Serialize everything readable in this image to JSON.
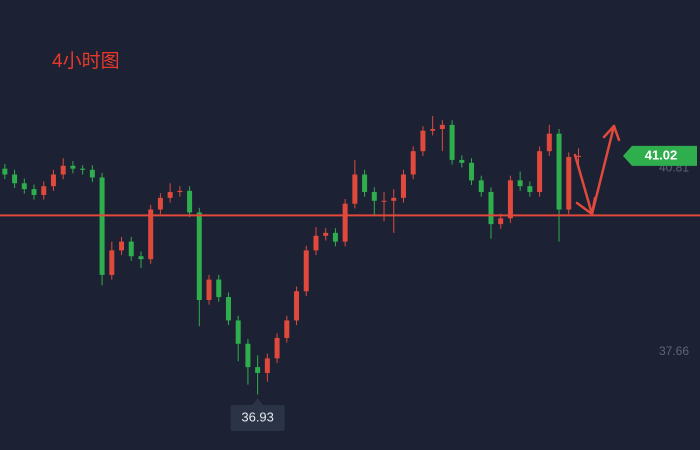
{
  "chart_data": {
    "type": "candlestick",
    "title": "4小时图",
    "xlim": [
      -0.5,
      71.5
    ],
    "ylim": [
      35.98,
      43.69
    ],
    "yticks": [
      37.66,
      40.81
    ],
    "up_color": "#e0493b",
    "down_color": "#2fae4e",
    "hline": 40.0,
    "hline_color": "#e0493b",
    "last_price": 41.02,
    "low_label": 36.93,
    "low_index": 26,
    "open": [
      40.8,
      40.7,
      40.55,
      40.45,
      40.35,
      40.5,
      40.7,
      40.85,
      40.8,
      40.78,
      40.65,
      38.98,
      39.4,
      39.55,
      39.3,
      39.25,
      40.1,
      40.3,
      40.4,
      40.42,
      40.05,
      38.55,
      38.9,
      38.6,
      38.2,
      37.8,
      37.4,
      37.3,
      37.55,
      37.9,
      38.2,
      38.7,
      39.4,
      39.65,
      39.7,
      39.55,
      40.2,
      40.7,
      40.4,
      40.25,
      40.25,
      40.3,
      40.7,
      41.1,
      41.45,
      41.48,
      41.55,
      40.95,
      40.9,
      40.6,
      40.4,
      39.85,
      39.95,
      40.6,
      40.5,
      40.4,
      41.1,
      41.4,
      40.1,
      41.0
    ],
    "high": [
      40.88,
      40.78,
      40.63,
      40.53,
      40.58,
      40.78,
      40.98,
      40.93,
      40.86,
      40.86,
      40.73,
      39.55,
      39.63,
      39.63,
      39.38,
      40.18,
      40.38,
      40.55,
      40.5,
      40.5,
      40.13,
      38.98,
      38.98,
      38.68,
      38.28,
      37.88,
      37.6,
      37.63,
      37.98,
      38.28,
      38.78,
      39.48,
      39.8,
      39.78,
      39.78,
      40.28,
      40.95,
      40.78,
      40.48,
      40.4,
      40.45,
      40.78,
      41.18,
      41.53,
      41.7,
      41.63,
      41.63,
      41.03,
      40.98,
      40.68,
      40.48,
      40.03,
      40.68,
      40.75,
      40.58,
      41.18,
      41.55,
      41.48,
      41.08,
      41.15
    ],
    "low": [
      40.62,
      40.47,
      40.37,
      40.27,
      40.27,
      40.42,
      40.62,
      40.72,
      40.7,
      40.57,
      38.8,
      38.9,
      39.32,
      39.22,
      39.1,
      39.17,
      40.02,
      40.22,
      40.32,
      39.97,
      38.1,
      38.47,
      38.52,
      38.12,
      37.5,
      37.1,
      36.93,
      37.15,
      37.47,
      37.82,
      38.12,
      38.62,
      39.32,
      39.57,
      39.47,
      39.47,
      40.12,
      40.32,
      40.0,
      39.9,
      39.7,
      40.22,
      40.62,
      41.02,
      41.37,
      41.1,
      40.87,
      40.82,
      40.52,
      40.32,
      39.6,
      39.77,
      39.87,
      40.42,
      40.32,
      40.32,
      41.02,
      39.55,
      40.02,
      40.8
    ],
    "close": [
      40.7,
      40.55,
      40.45,
      40.35,
      40.5,
      40.7,
      40.85,
      40.8,
      40.78,
      40.65,
      38.98,
      39.4,
      39.55,
      39.3,
      39.25,
      40.1,
      40.3,
      40.4,
      40.42,
      40.05,
      38.55,
      38.9,
      38.6,
      38.2,
      37.8,
      37.4,
      37.3,
      37.55,
      37.9,
      38.2,
      38.7,
      39.4,
      39.65,
      39.7,
      39.55,
      40.2,
      40.7,
      40.4,
      40.25,
      40.25,
      40.3,
      40.7,
      41.1,
      41.45,
      41.48,
      41.55,
      40.95,
      40.9,
      40.6,
      40.4,
      39.85,
      39.95,
      40.6,
      40.5,
      40.4,
      41.1,
      41.4,
      40.1,
      41.0,
      41.02
    ]
  }
}
